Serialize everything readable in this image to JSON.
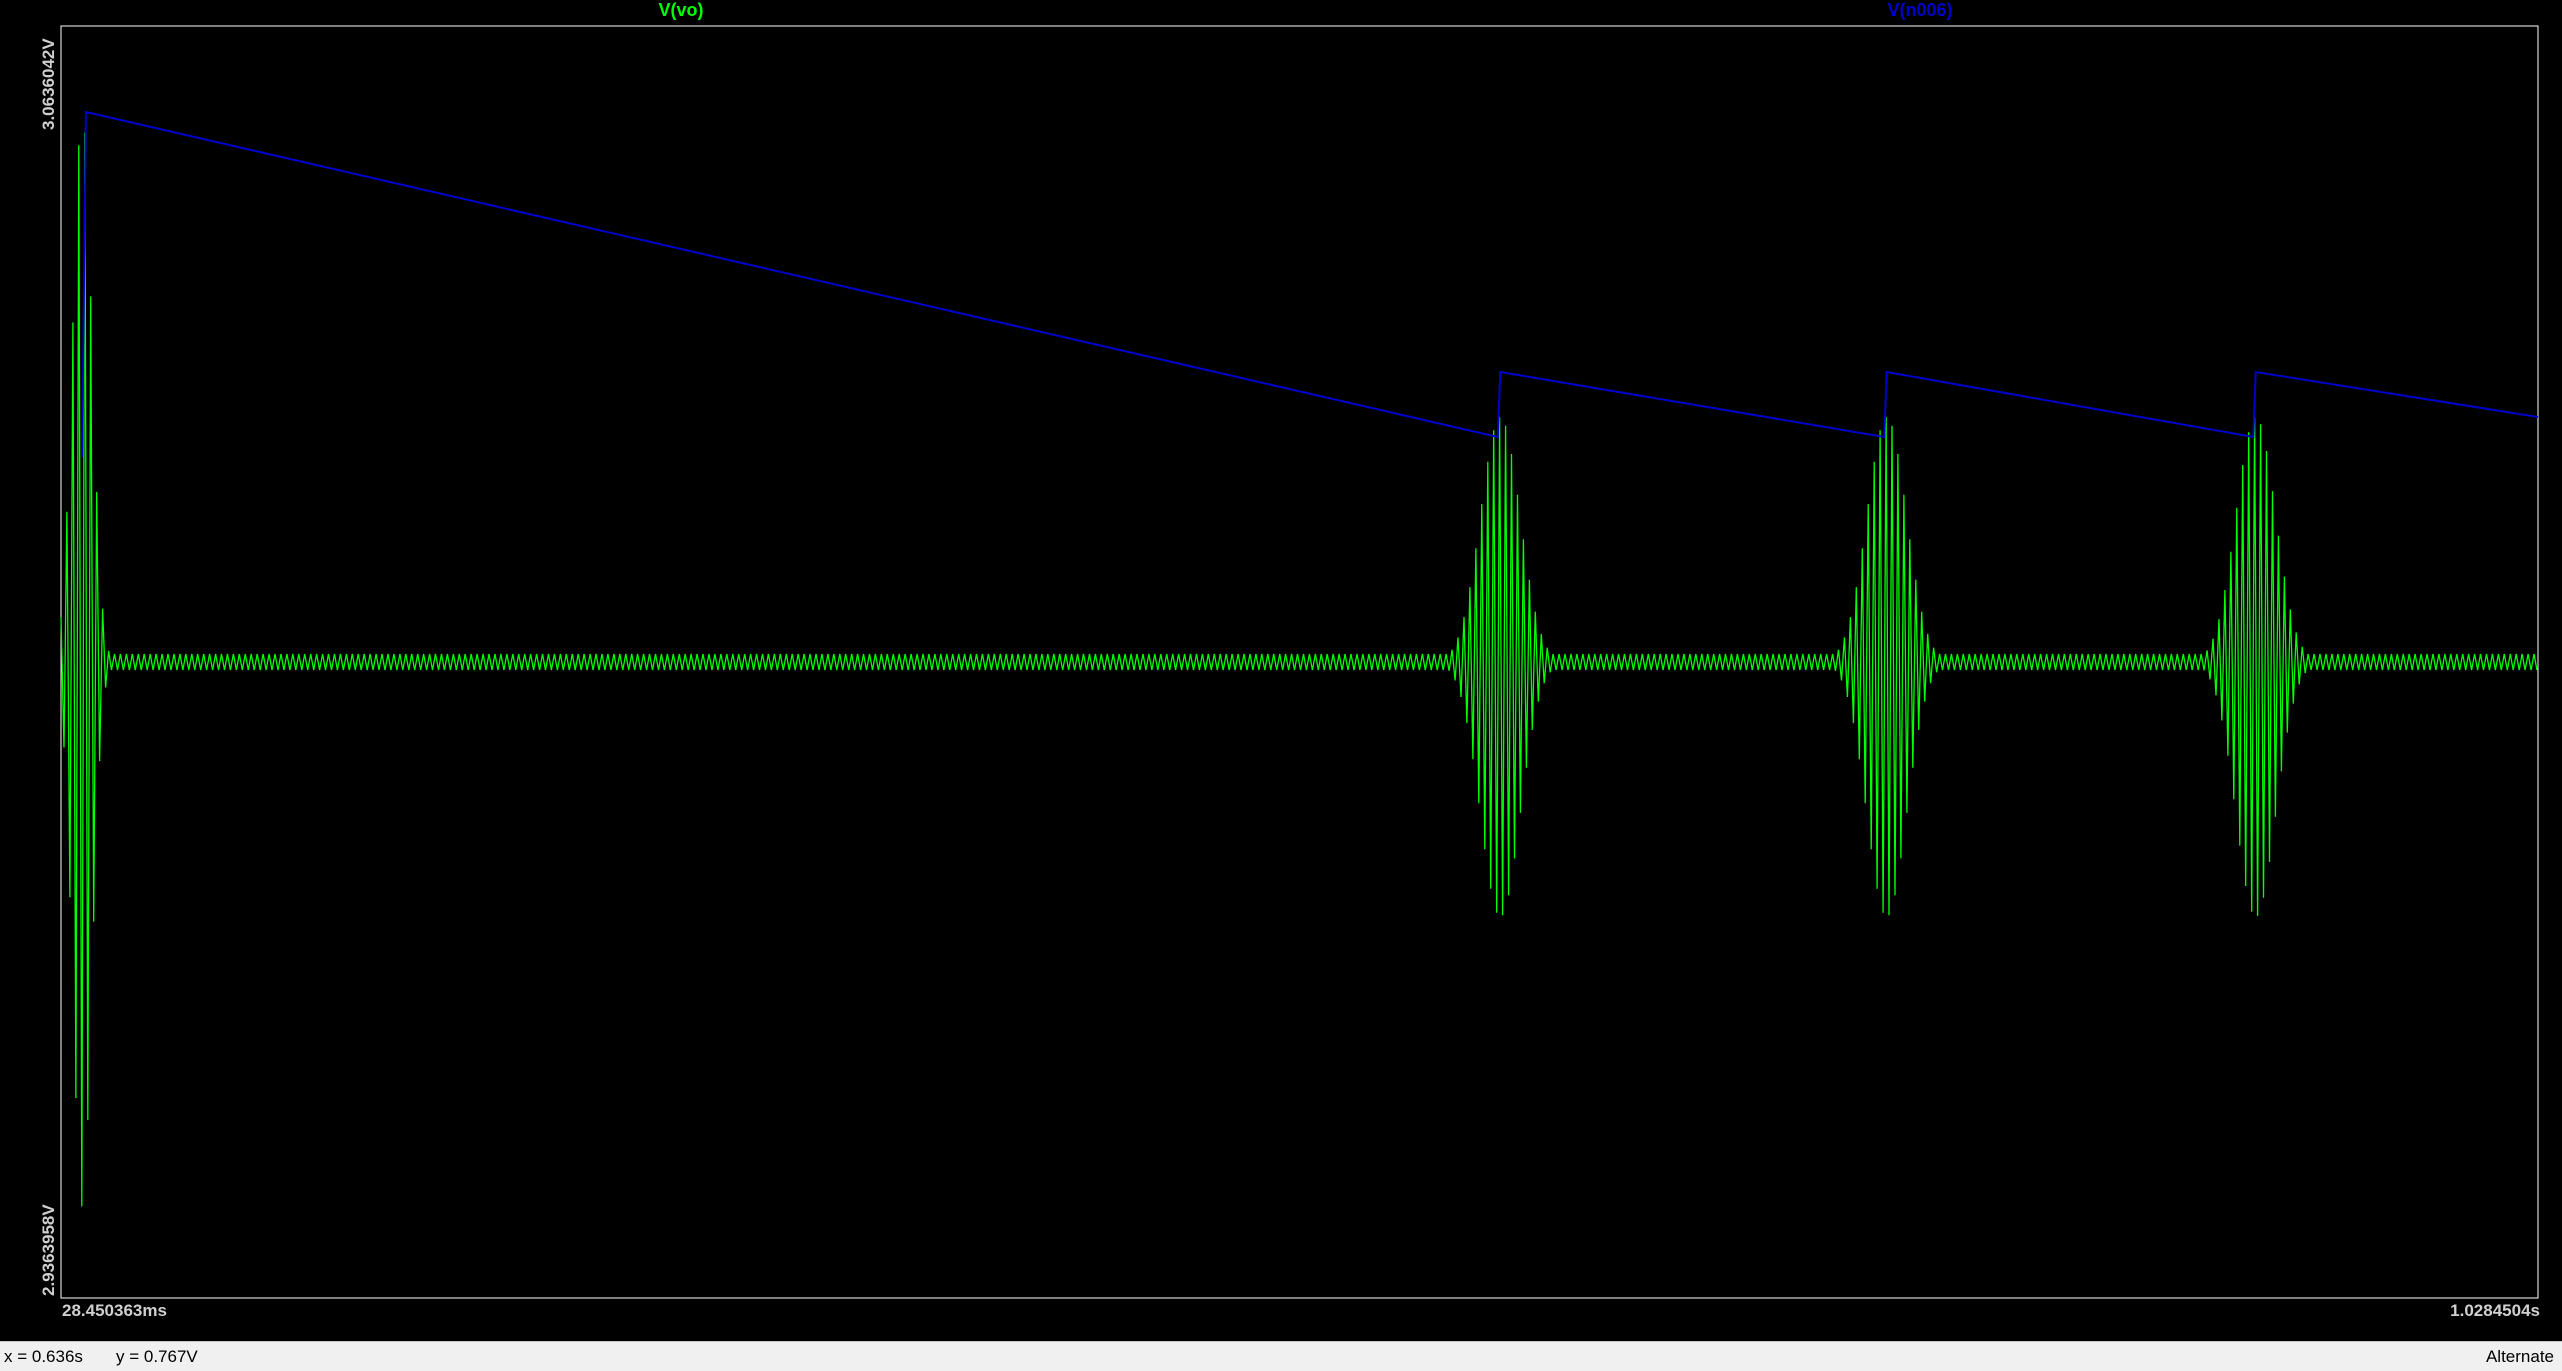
{
  "plot": {
    "traces": {
      "vo": {
        "label": "V(vo)",
        "color": "#00ff00"
      },
      "n006": {
        "label": "V(n006)",
        "color": "#0000cc"
      }
    },
    "y_top_label": "3.0636042V",
    "y_bottom_label": "2.9363958V",
    "x_left_label": "28.450363ms",
    "x_right_label": "1.0284504s"
  },
  "status": {
    "x_readout": "x = 0.636s",
    "y_readout": "y = 0.767V",
    "mode": "Alternate"
  },
  "chart_data": {
    "type": "line",
    "xlabel": "",
    "ylabel": "",
    "xlim": [
      0.028450363,
      1.0284504
    ],
    "ylim": [
      2.9363958,
      3.0636042
    ],
    "grid": false,
    "series": [
      {
        "name": "V(vo)",
        "color": "#00ff00",
        "baseline": 3.0,
        "noise_amplitude": 0.0008,
        "bursts": [
          {
            "x": 0.037,
            "max": 3.055,
            "min": 2.9455,
            "width": 0.012
          },
          {
            "x": 0.6095,
            "max": 3.0245,
            "min": 2.9745,
            "width": 0.025
          },
          {
            "x": 0.7655,
            "max": 3.0245,
            "min": 2.9745,
            "width": 0.025
          },
          {
            "x": 0.9145,
            "max": 3.0245,
            "min": 2.9745,
            "width": 0.025
          }
        ]
      },
      {
        "name": "V(n006)",
        "color": "#0000cc",
        "x": [
          0.037,
          0.0385,
          0.6085,
          0.6095,
          0.7645,
          0.7655,
          0.9135,
          0.9145,
          1.0284504
        ],
        "y": [
          3.0205,
          3.055,
          3.0225,
          3.029,
          3.0225,
          3.029,
          3.0225,
          3.029,
          3.0245
        ]
      }
    ]
  }
}
